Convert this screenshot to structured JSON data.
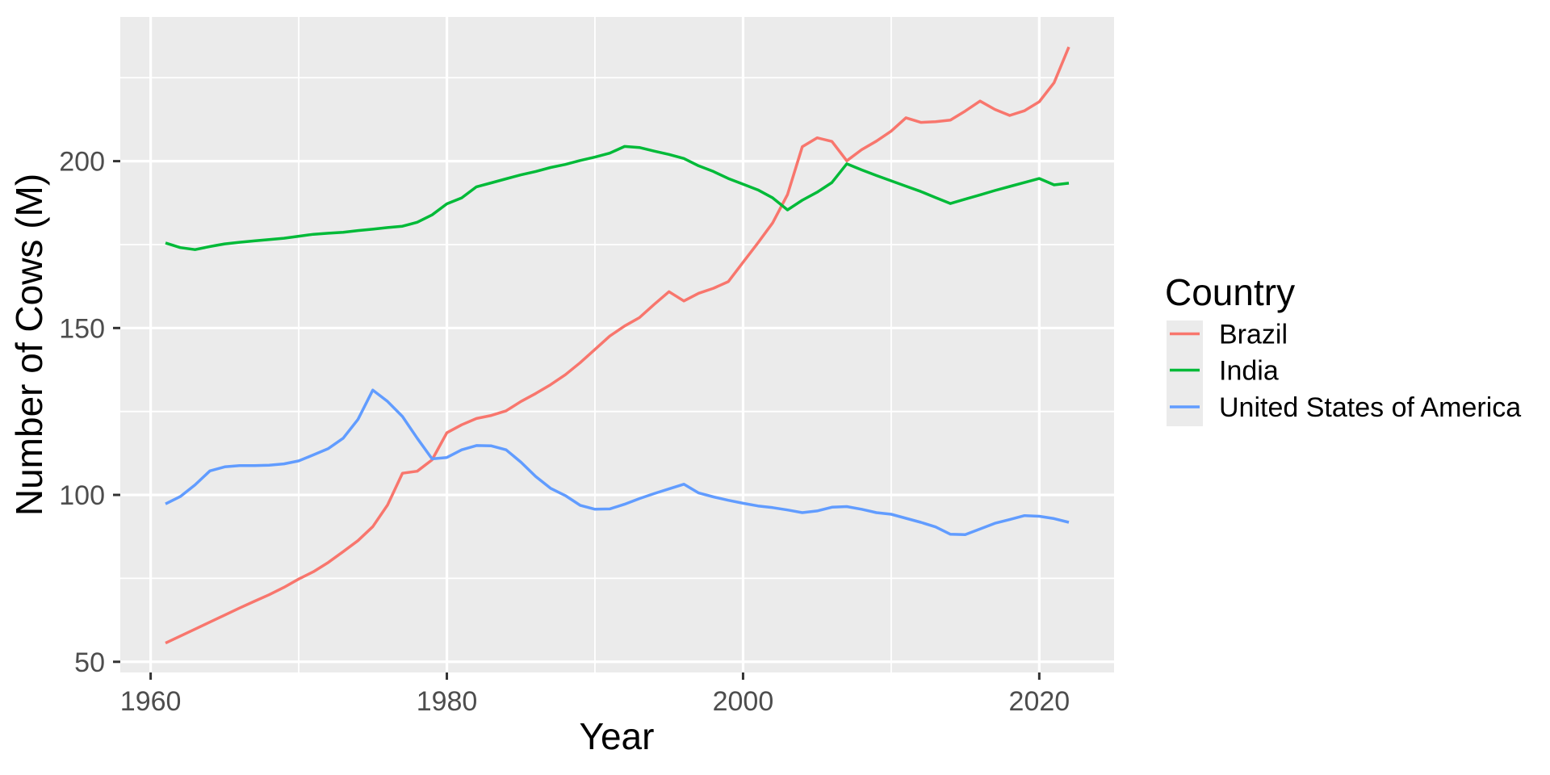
{
  "figure": {
    "xlabel": "Year",
    "ylabel": "Number of Cows (M)",
    "legend_title": "Country"
  },
  "colors": {
    "panel_background": "#EBEBEB",
    "gridline": "#FFFFFF",
    "axis_text": "#4D4D4D",
    "tick_mark": "#333333",
    "title_text": "#000000",
    "figure_background": "#FFFFFF",
    "brazil_line": "#F8766D",
    "india_line": "#00BA38",
    "usa_line": "#619CFF"
  },
  "chart_data": {
    "type": "line",
    "title": "",
    "xlabel": "Year",
    "ylabel": "Number of Cows (M)",
    "legend_title": "Country",
    "legend_position": "right",
    "grid": "white major+minor gridlines on gray panel",
    "x_domain": [
      1957.95,
      2025.05
    ],
    "y_domain": [
      46.8,
      243.2
    ],
    "x_ticks": [
      1960,
      1980,
      2000,
      2020
    ],
    "x_minor_ticks": [
      1970,
      1990,
      2010
    ],
    "y_ticks": [
      50,
      100,
      150,
      200
    ],
    "y_minor_ticks": [
      75,
      125,
      175,
      225
    ],
    "x": [
      1961,
      1962,
      1963,
      1964,
      1965,
      1966,
      1967,
      1968,
      1969,
      1970,
      1971,
      1972,
      1973,
      1974,
      1975,
      1976,
      1977,
      1978,
      1979,
      1980,
      1981,
      1982,
      1983,
      1984,
      1985,
      1986,
      1987,
      1988,
      1989,
      1990,
      1991,
      1992,
      1993,
      1994,
      1995,
      1996,
      1997,
      1998,
      1999,
      2000,
      2001,
      2002,
      2003,
      2004,
      2005,
      2006,
      2007,
      2008,
      2009,
      2010,
      2011,
      2012,
      2013,
      2014,
      2015,
      2016,
      2017,
      2018,
      2019,
      2020,
      2021,
      2022
    ],
    "series": [
      {
        "name": "Brazil",
        "color": "#F8766D",
        "values": [
          55.6,
          57.7,
          59.8,
          61.9,
          64.0,
          66.1,
          68.1,
          70.1,
          72.3,
          74.8,
          77.0,
          79.8,
          83.0,
          86.3,
          90.5,
          97.0,
          106.5,
          107.1,
          110.5,
          118.6,
          121.0,
          122.9,
          123.8,
          125.2,
          128.0,
          130.4,
          133.0,
          136.0,
          139.6,
          143.6,
          147.6,
          150.6,
          153.1,
          157.1,
          160.9,
          158.1,
          160.4,
          161.9,
          163.9,
          169.7,
          175.5,
          181.5,
          190.0,
          204.3,
          207.0,
          205.9,
          200.1,
          203.4,
          206.0,
          209.0,
          213.0,
          211.6,
          211.8,
          212.3,
          215.0,
          218.0,
          215.5,
          213.7,
          215.1,
          217.8,
          223.5,
          234.2
        ]
      },
      {
        "name": "India",
        "color": "#00BA38",
        "values": [
          175.5,
          174.1,
          173.5,
          174.4,
          175.2,
          175.7,
          176.1,
          176.5,
          176.9,
          177.5,
          178.1,
          178.4,
          178.7,
          179.2,
          179.6,
          180.1,
          180.5,
          181.7,
          183.9,
          187.2,
          189.0,
          192.3,
          193.5,
          194.7,
          195.9,
          196.9,
          198.1,
          199.0,
          200.2,
          201.2,
          202.4,
          204.4,
          204.1,
          203.0,
          202.0,
          200.8,
          198.6,
          196.9,
          194.8,
          193.1,
          191.4,
          189.0,
          185.4,
          188.3,
          190.7,
          193.6,
          199.2,
          197.4,
          195.7,
          194.1,
          192.5,
          190.9,
          189.1,
          187.3,
          188.6,
          189.9,
          191.2,
          192.4,
          193.6,
          194.8,
          192.9,
          193.4
        ]
      },
      {
        "name": "United States of America",
        "color": "#619CFF",
        "values": [
          97.3,
          99.5,
          103.0,
          107.2,
          108.4,
          108.8,
          108.8,
          108.9,
          109.3,
          110.2,
          112.0,
          113.9,
          117.0,
          122.6,
          131.4,
          128.0,
          123.5,
          117.0,
          110.8,
          111.2,
          113.5,
          114.8,
          114.7,
          113.5,
          109.8,
          105.5,
          102.0,
          99.8,
          96.9,
          95.7,
          95.8,
          97.2,
          98.9,
          100.4,
          101.8,
          103.2,
          100.6,
          99.4,
          98.4,
          97.5,
          96.7,
          96.2,
          95.5,
          94.7,
          95.2,
          96.3,
          96.5,
          95.7,
          94.7,
          94.2,
          93.0,
          91.8,
          90.4,
          88.2,
          88.1,
          89.8,
          91.5,
          92.6,
          93.8,
          93.6,
          92.9,
          91.8
        ]
      }
    ]
  }
}
